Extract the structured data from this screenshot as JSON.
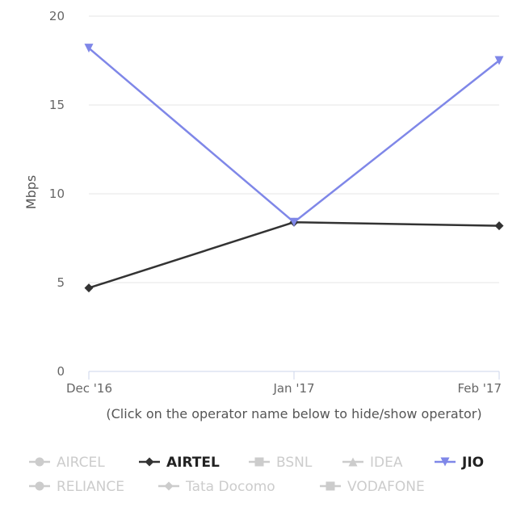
{
  "chart_data": {
    "type": "line",
    "categories": [
      "Dec '16",
      "Jan '17",
      "Feb '17"
    ],
    "ylabel": "Mbps",
    "xlabel": "(Click on the operator name below to hide/show operator)",
    "ylim": [
      0,
      20
    ],
    "yticks": [
      0,
      5,
      10,
      15,
      20
    ],
    "grid": true,
    "legend_position": "bottom",
    "series": [
      {
        "name": "AIRTEL",
        "values": [
          4.7,
          8.4,
          8.2
        ],
        "color": "#333333",
        "marker": "diamond"
      },
      {
        "name": "JIO",
        "values": [
          18.2,
          8.4,
          17.5
        ],
        "color": "#7f87e8",
        "marker": "triangle-down"
      }
    ],
    "legend": [
      {
        "name": "AIRCEL",
        "marker": "circle",
        "active": false
      },
      {
        "name": "AIRTEL",
        "marker": "diamond",
        "active": true,
        "color": "#333333"
      },
      {
        "name": "BSNL",
        "marker": "square",
        "active": false
      },
      {
        "name": "IDEA",
        "marker": "triangle",
        "active": false
      },
      {
        "name": "JIO",
        "marker": "triangle-down",
        "active": true,
        "color": "#7f87e8"
      },
      {
        "name": "RELIANCE",
        "marker": "circle",
        "active": false
      },
      {
        "name": "Tata Docomo",
        "marker": "diamond",
        "active": false
      },
      {
        "name": "VODAFONE",
        "marker": "square",
        "active": false
      }
    ],
    "inactive_color": "#cccccc"
  }
}
